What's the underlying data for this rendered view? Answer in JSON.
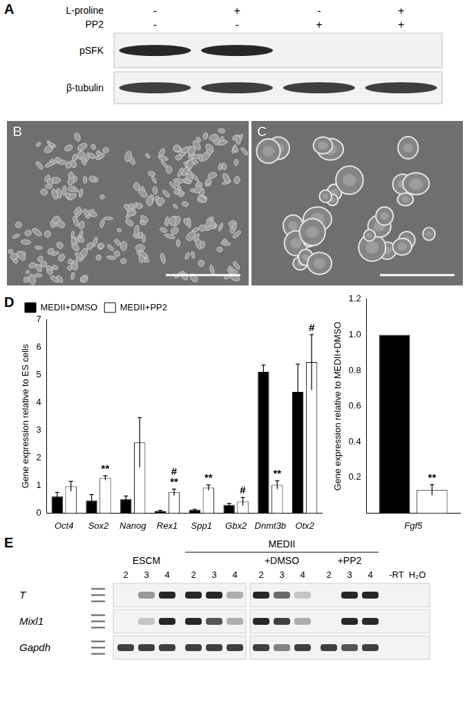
{
  "panel_labels": [
    "A",
    "B",
    "C",
    "D",
    "E"
  ],
  "blot": {
    "conditions": [
      {
        "label": "L-proline",
        "values": [
          "-",
          "+",
          "-",
          "+"
        ]
      },
      {
        "label": "PP2",
        "values": [
          "-",
          "-",
          "+",
          "+"
        ]
      }
    ],
    "rows": [
      {
        "label": "pSFK",
        "bands": [
          0.9,
          0.9,
          0,
          0
        ]
      },
      {
        "label": "β-tubulin",
        "bands": [
          0.8,
          0.8,
          0.8,
          0.8
        ]
      }
    ]
  },
  "chart_data": [
    {
      "type": "bar",
      "categories": [
        "Oct4",
        "Sox2",
        "Nanog",
        "Rex1",
        "Spp1",
        "Gbx2",
        "Dnmt3b",
        "Otx2"
      ],
      "series": [
        {
          "name": "MEDII+DMSO",
          "color": "#000000",
          "values": [
            0.6,
            0.45,
            0.5,
            0.08,
            0.12,
            0.3,
            5.1,
            4.38
          ],
          "errors": [
            0.15,
            0.22,
            0.12,
            0.02,
            0.02,
            0.05,
            0.25,
            1.0
          ]
        },
        {
          "name": "MEDII+PP2",
          "color": "#ffffff",
          "values": [
            0.97,
            1.27,
            2.55,
            0.75,
            0.92,
            0.42,
            1.02,
            5.45
          ],
          "errors": [
            0.18,
            0.08,
            0.9,
            0.12,
            0.1,
            0.15,
            0.15,
            1.0
          ],
          "annotations": [
            null,
            [
              "**"
            ],
            null,
            [
              "**",
              "#"
            ],
            [
              "**"
            ],
            [
              "#"
            ],
            [
              "**"
            ],
            [
              "#"
            ]
          ]
        }
      ],
      "y_label": "Gene expression relative to ES cells",
      "ylim": [
        0,
        7
      ],
      "yticks": [
        0,
        1,
        2,
        3,
        4,
        5,
        6,
        7
      ],
      "grid": false,
      "legend": "upper left"
    },
    {
      "type": "bar",
      "categories": [
        "Fgf5"
      ],
      "series": [
        {
          "color": "#000000",
          "values": [
            1.0
          ],
          "errors": [
            null
          ]
        },
        {
          "color": "#ffffff",
          "values": [
            0.13
          ],
          "errors": [
            0.03
          ],
          "annotations": [
            [
              "**"
            ]
          ]
        }
      ],
      "y_label": "Gene expression relative to MEDII+DMSO",
      "ylim": [
        0,
        1.2
      ],
      "yticks": [
        0.2,
        0.4,
        0.6,
        0.8,
        {
          "value": 1,
          "label": "1.0"
        },
        1.2
      ],
      "grid": false
    }
  ],
  "gel": {
    "groups": [
      {
        "label": "ESCM",
        "lanes": [
          "2",
          "3",
          "4"
        ]
      },
      {
        "label": "MEDII",
        "subgroups": [
          {
            "lanes": [
              "2",
              "3",
              "4"
            ]
          },
          {
            "label": "+DMSO",
            "lanes": [
              "2",
              "3",
              "4"
            ]
          },
          {
            "label": "+PP2",
            "lanes": [
              "2",
              "3",
              "4"
            ]
          }
        ]
      },
      {
        "lanes": [
          "-RT",
          "H₂O"
        ]
      }
    ],
    "rows": [
      {
        "label": "T",
        "bands": [
          0,
          0.4,
          0.9,
          0.9,
          0.9,
          0.3,
          0.9,
          0.6,
          0.2,
          0,
          0.9,
          0.9,
          0,
          0
        ]
      },
      {
        "label": "Mixl1",
        "bands": [
          0,
          0.2,
          0.9,
          0.9,
          0.7,
          0.3,
          0.9,
          0.8,
          0.3,
          0,
          0.9,
          0.9,
          0,
          0
        ]
      },
      {
        "label": "Gapdh",
        "bands": [
          0.8,
          0.8,
          0.8,
          0.8,
          0.8,
          0.8,
          0.8,
          0.5,
          0.8,
          0.8,
          0.7,
          0.8,
          0,
          0
        ]
      }
    ]
  }
}
